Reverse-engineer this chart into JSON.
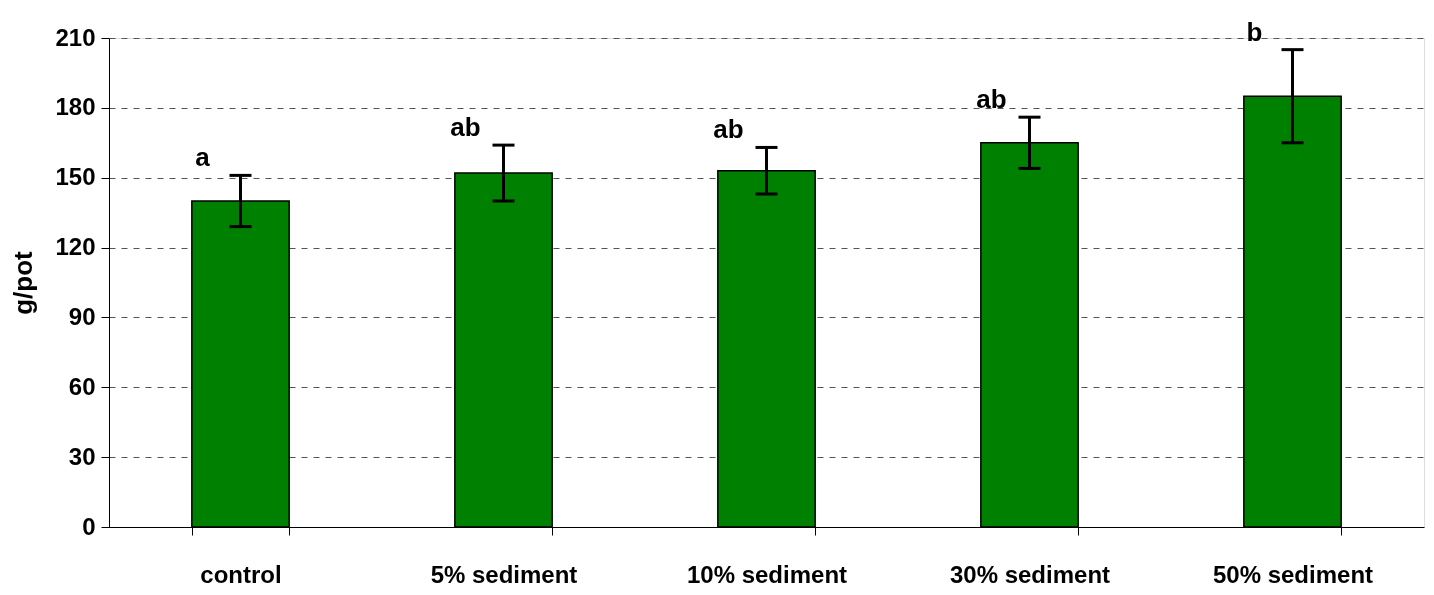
{
  "chart_data": {
    "type": "bar",
    "ylabel": "g/pot",
    "categories": [
      "control",
      "5% sediment",
      "10% sediment",
      "30% sediment",
      "50% sediment"
    ],
    "values": [
      140,
      152,
      153,
      165,
      185
    ],
    "errors": [
      11,
      12,
      10,
      11,
      20
    ],
    "color": "#008000",
    "ylim": [
      0,
      210
    ],
    "yticks": [
      0,
      30,
      60,
      90,
      120,
      150,
      180,
      210
    ],
    "grid": "y",
    "annotations": [
      "a",
      "ab",
      "ab",
      "ab",
      "b"
    ]
  }
}
